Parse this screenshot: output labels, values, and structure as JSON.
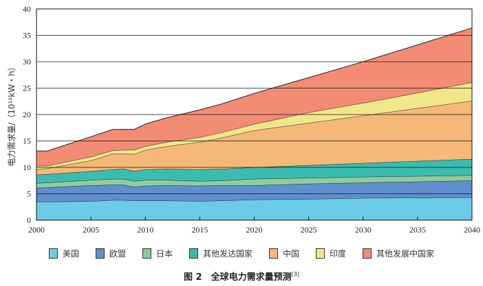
{
  "chart_data": {
    "type": "area",
    "stacked": true,
    "title": "",
    "xlabel": "",
    "ylabel": "电力需求量/（10¹²kW・h）",
    "xlim": [
      2000,
      2040
    ],
    "ylim": [
      0,
      40
    ],
    "xticks": [
      2000,
      2005,
      2010,
      2015,
      2020,
      2025,
      2030,
      2035,
      2040
    ],
    "yticks": [
      0,
      5,
      10,
      15,
      20,
      25,
      30,
      35,
      40
    ],
    "grid": "horizontal",
    "legend_position": "bottom",
    "x": [
      2000,
      2001,
      2005,
      2007,
      2008,
      2009,
      2010,
      2012,
      2015,
      2017,
      2020,
      2025,
      2030,
      2035,
      2040
    ],
    "series": [
      {
        "name": "美国",
        "color": "#6ccbe8",
        "values": [
          3.5,
          3.5,
          3.6,
          3.8,
          3.8,
          3.7,
          3.7,
          3.7,
          3.6,
          3.7,
          3.9,
          4.0,
          4.2,
          4.25,
          4.3
        ]
      },
      {
        "name": "欧盟",
        "color": "#5f8fcc",
        "values": [
          2.6,
          2.7,
          3.0,
          2.9,
          2.9,
          2.6,
          2.8,
          2.9,
          2.9,
          2.9,
          2.7,
          2.9,
          2.9,
          3.05,
          3.2
        ]
      },
      {
        "name": "日本",
        "color": "#8fcca0",
        "values": [
          0.9,
          0.9,
          1.0,
          1.1,
          1.1,
          1.1,
          1.1,
          1.0,
          0.9,
          0.9,
          1.2,
          1.1,
          1.1,
          1.05,
          1.0
        ]
      },
      {
        "name": "其他发达国家",
        "color": "#3bbcb0",
        "values": [
          1.6,
          1.6,
          1.7,
          1.8,
          1.9,
          1.9,
          2.0,
          2.1,
          2.2,
          2.2,
          2.2,
          2.4,
          2.6,
          2.85,
          3.1
        ]
      },
      {
        "name": "中国",
        "color": "#f6b877",
        "values": [
          1.0,
          1.1,
          2.0,
          3.0,
          2.9,
          3.2,
          3.7,
          4.3,
          5.2,
          5.9,
          7.0,
          8.0,
          9.0,
          10.0,
          11.0
        ]
      },
      {
        "name": "印度",
        "color": "#f2e68a",
        "values": [
          0.7,
          0.5,
          0.7,
          0.6,
          0.7,
          0.8,
          0.7,
          0.8,
          0.9,
          1.0,
          1.2,
          2.0,
          2.4,
          2.9,
          3.5
        ]
      },
      {
        "name": "其他发展中国家",
        "color": "#f28c74",
        "values": [
          2.8,
          2.8,
          3.8,
          4.0,
          3.9,
          3.9,
          4.2,
          4.6,
          5.2,
          5.4,
          5.8,
          6.6,
          7.8,
          9.1,
          10.3
        ]
      }
    ]
  },
  "caption": {
    "label": "图 2　全球电力需求量预测",
    "ref": "[3]"
  }
}
